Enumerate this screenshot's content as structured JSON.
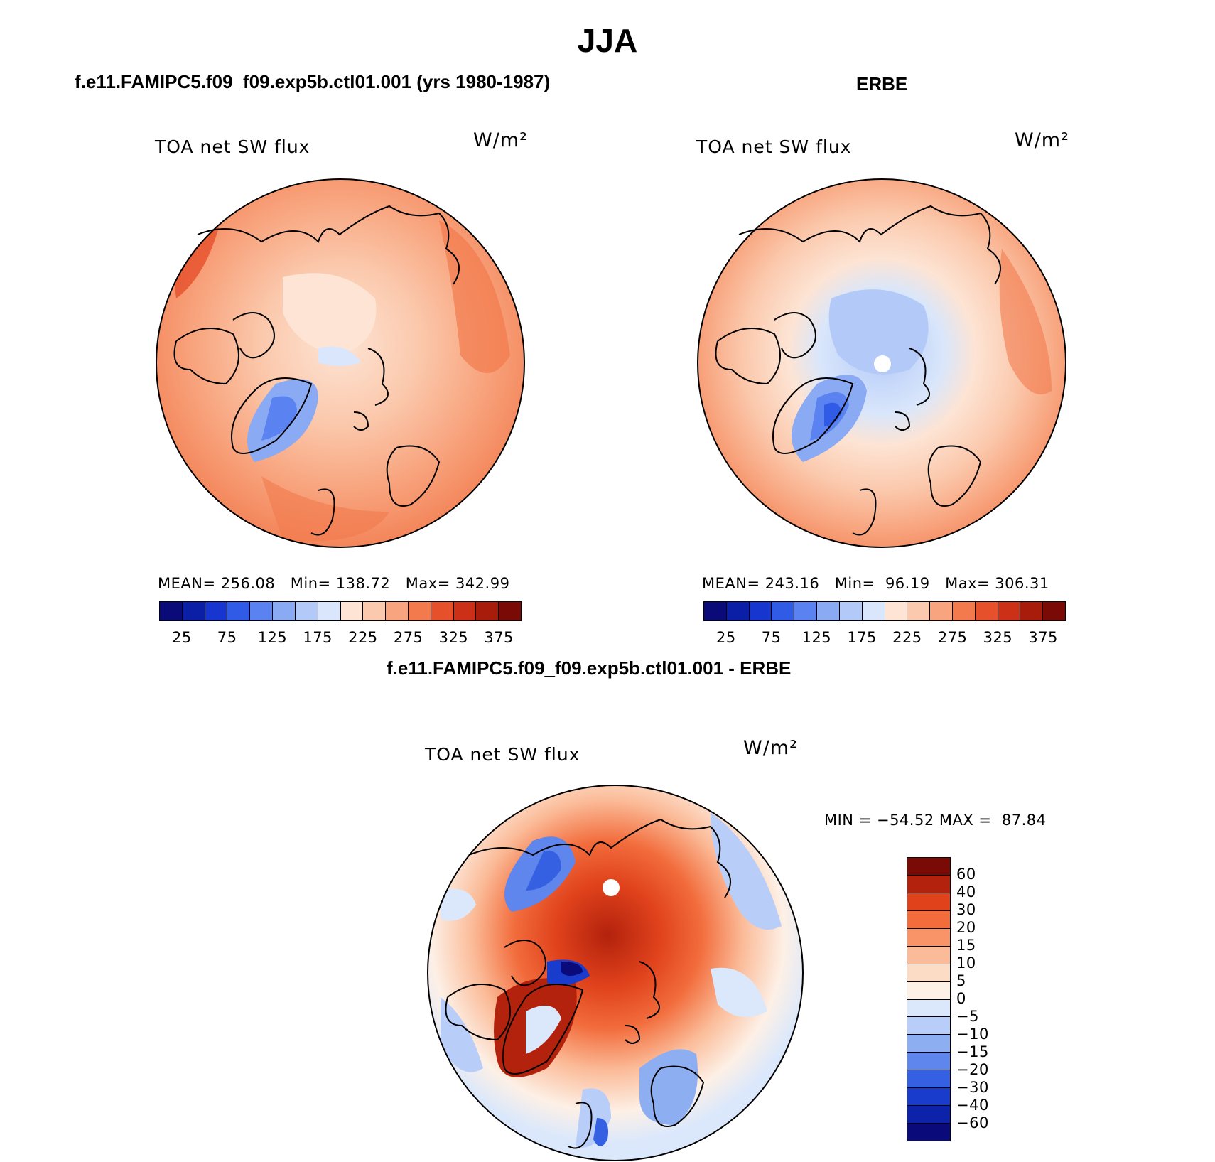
{
  "title": "JJA",
  "panels": [
    {
      "header": "f.e11.FAMIPC5.f09_f09.exp5b.ctl01.001 (yrs 1980-1987)",
      "label": "TOA net SW flux",
      "units": "W/m²",
      "stats": "MEAN= 256.08   Min= 138.72   Max= 342.99"
    },
    {
      "header": "ERBE",
      "label": "TOA net SW flux",
      "units": "W/m²",
      "stats": "MEAN= 243.16   Min=  96.19   Max= 306.31"
    },
    {
      "header": "f.e11.FAMIPC5.f09_f09.exp5b.ctl01.001 - ERBE",
      "label": "TOA net SW flux",
      "units": "W/m²",
      "stats": "MIN = −54.52 MAX =  87.84"
    }
  ],
  "colorbar_top": {
    "ticks": [
      "25",
      "75",
      "125",
      "175",
      "225",
      "275",
      "325",
      "375"
    ],
    "colors": [
      "#0a0a78",
      "#0b1ea6",
      "#1736d0",
      "#2f5be6",
      "#5a82f0",
      "#8aaaf4",
      "#b3c9f8",
      "#d9e6fb",
      "#fde4d4",
      "#fbc9ad",
      "#f8a57f",
      "#f27a4d",
      "#e6502a",
      "#cc3016",
      "#a81c0c",
      "#7a0a05"
    ]
  },
  "colorbar_diff": {
    "ticks": [
      "60",
      "40",
      "30",
      "20",
      "15",
      "10",
      "5",
      "0",
      "−5",
      "−10",
      "−15",
      "−20",
      "−30",
      "−40",
      "−60"
    ],
    "colors": [
      "#7a0a05",
      "#b3220c",
      "#e0421c",
      "#f26c3c",
      "#f89468",
      "#fbbb98",
      "#fddcc6",
      "#fdf0e6",
      "#dbe8fb",
      "#b8cdf7",
      "#8eaef2",
      "#5f86ec",
      "#3560e2",
      "#1a3ccd",
      "#0c22a8",
      "#0a0a7a"
    ]
  },
  "colors": {
    "ocean_orange": "#f59160",
    "land_coast": "#000000"
  }
}
